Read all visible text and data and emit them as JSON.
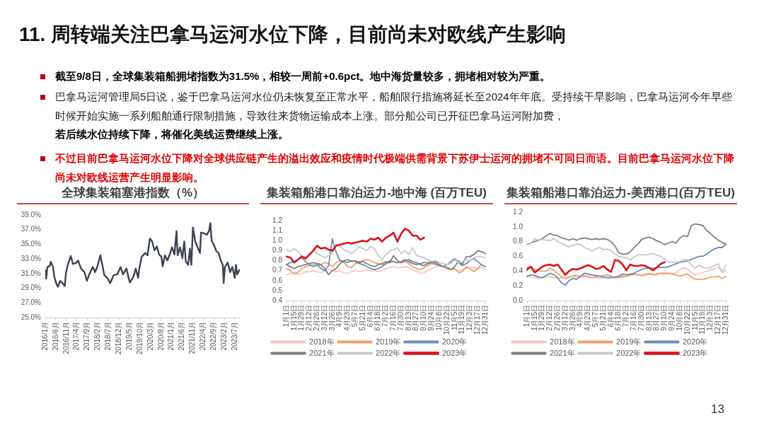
{
  "chart_data": [
    {
      "type": "other",
      "title": "11. 周转端关注巴拿马运河水位下降，目前尚未对欧线产生影响",
      "annotations": [
        "截至9/8日，全球集装箱船拥堵指数为31.5%，相较一周前+0.6pct。地中海货量较多，拥堵相对较为严重。",
        "巴拿马运河管理局5日说，鉴于巴拿马运河水位仍未恢复至正常水平，船舶限行措施将延长至2024年年底。受持续干旱影响，巴拿马运河今年早些时候开始实施一系列船舶通行限制措施，导致往来货物运输成本上涨。部分船公司已开征巴拿马运河附加费，",
        "若后续水位持续下降，将催化美线运费继续上涨。",
        "不过目前巴拿马运河水位下降对全球供应链产生的溢出效应和疫情时代极端供需背景下苏伊士运河的拥堵不可同日而语。目前巴拿马运河水位下降尚未对欧线运营产生明显影响。",
        "13"
      ]
    },
    {
      "type": "line",
      "title": "全球集装箱塞港指数（%）",
      "color": "#3d4450",
      "marker": "none",
      "grid": false,
      "legend": false,
      "x": [
        "2016-01-01",
        "2016-01-14",
        "2016-02-01",
        "2016-03-04",
        "2016-03-20",
        "2016-04-23",
        "2016-05-10",
        "2016-06-06",
        "2016-07-01",
        "2016-08-03",
        "2016-09-06",
        "2016-10-09",
        "2016-10-26",
        "2016-11-22",
        "2017-01-02",
        "2017-02-05",
        "2017-03-25",
        "2017-04-18",
        "2017-06-01",
        "2017-07-21",
        "2017-08-25",
        "2017-09-28",
        "2017-11-18",
        "2017-12-21",
        "2018-01-24",
        "2018-03-07",
        "2018-04-10",
        "2018-05-03",
        "2018-06-23",
        "2018-07-27",
        "2018-09-16",
        "2018-11-06",
        "2018-12-25",
        "2019-01-28",
        "2019-03-19",
        "2019-04-22",
        "2019-05-09",
        "2019-06-28",
        "2019-08-01",
        "2019-09-04",
        "2019-09-21",
        "2019-10-24",
        "2019-12-15",
        "2020-01-18",
        "2020-02-21",
        "2020-03-24",
        "2020-04-27",
        "2020-06-01",
        "2020-07-03",
        "2020-08-06",
        "2020-08-23",
        "2020-09-26",
        "2020-10-30",
        "2020-12-03",
        "2021-01-06",
        "2021-02-09",
        "2021-03-12",
        "2021-03-28",
        "2021-05-02",
        "2021-06-04",
        "2021-07-01",
        "2021-07-25",
        "2021-08-28",
        "2021-09-21",
        "2021-10-12",
        "2021-11-04",
        "2021-12-07",
        "2022-01-10",
        "2022-02-14",
        "2022-03-01",
        "2022-04-10",
        "2022-05-24",
        "2022-06-27",
        "2022-07-13",
        "2022-08-01",
        "2022-09-03",
        "2022-10-07",
        "2022-11-09",
        "2022-12-12",
        "2023-01-09",
        "2023-01-22",
        "2023-02-09",
        "2023-03-22",
        "2023-04-25",
        "2023-05-28",
        "2023-07-01",
        "2023-07-18",
        "2023-08-05",
        "2023-09-08"
      ],
      "values": [
        31.5,
        30.3,
        31.9,
        32.0,
        32.6,
        31.9,
        30.6,
        29.7,
        29.2,
        30.0,
        29.7,
        29.3,
        31.1,
        32.2,
        33.4,
        32.3,
        32.5,
        32.8,
        31.7,
        31.2,
        30.0,
        30.9,
        31.9,
        31.2,
        32.0,
        33.5,
        31.9,
        30.8,
        30.3,
        29.7,
        30.8,
        30.9,
        31.9,
        30.9,
        31.7,
        30.3,
        29.8,
        30.6,
        31.7,
        30.4,
        31.7,
        33.3,
        33.8,
        33.5,
        35.8,
        35.4,
        34.2,
        34.7,
        33.6,
        33.3,
        32.0,
        33.5,
        32.8,
        33.6,
        34.6,
        33.6,
        36.8,
        33.5,
        34.6,
        33.1,
        35.4,
        32.6,
        32.2,
        34.4,
        32.2,
        37.3,
        35.4,
        34.6,
        33.8,
        36.6,
        36.5,
        36.3,
        36.9,
        37.9,
        35.5,
        34.9,
        34.1,
        33.8,
        32.8,
        32.2,
        29.7,
        31.9,
        32.5,
        31.2,
        31.9,
        30.4,
        32.2,
        30.9,
        31.5
      ],
      "xlim": [
        "2016-01-01",
        "2023-09-15"
      ],
      "xticks": [
        {
          "value": "2016-01",
          "label": "2016/1月"
        },
        {
          "value": "2016-06",
          "label": "2016/6月"
        },
        {
          "value": "2016-11",
          "label": "2016/11月"
        },
        {
          "value": "2017-04",
          "label": "2017/4月"
        },
        {
          "value": "2017-09",
          "label": "2017/9月"
        },
        {
          "value": "2018-02",
          "label": "2018/2月"
        },
        {
          "value": "2018-07",
          "label": "2018/7月"
        },
        {
          "value": "2018-12",
          "label": "2018/12月"
        },
        {
          "value": "2019-05",
          "label": "2019/5月"
        },
        {
          "value": "2019-10",
          "label": "2019/10月"
        },
        {
          "value": "2020-03",
          "label": "2020/3月"
        },
        {
          "value": "2020-08",
          "label": "2020/8月"
        },
        {
          "value": "2021-01",
          "label": "2021/1月"
        },
        {
          "value": "2021-06",
          "label": "2021/6月"
        },
        {
          "value": "2021-11",
          "label": "2021/11月"
        },
        {
          "value": "2022-04",
          "label": "2022/4月"
        },
        {
          "value": "2022-09",
          "label": "2022/9月"
        },
        {
          "value": "2023-02",
          "label": "2023/2月"
        },
        {
          "value": "2023-07",
          "label": "2023/7月"
        }
      ],
      "ylim": [
        25,
        39
      ],
      "yticks": [
        {
          "value": 25,
          "label": "25.0%"
        },
        {
          "value": 27,
          "label": "27.0%"
        },
        {
          "value": 29,
          "label": "29.0%"
        },
        {
          "value": 31,
          "label": "31.0%"
        },
        {
          "value": 33,
          "label": "33.0%"
        },
        {
          "value": 35,
          "label": "35.0%"
        },
        {
          "value": 37,
          "label": "37.0%"
        },
        {
          "value": 39,
          "label": "39.0%"
        }
      ]
    },
    {
      "type": "line",
      "title": "集装箱船港口靠泊运力-地中海 (百万TEU)",
      "marker": "none",
      "grid": false,
      "legend": "bottom",
      "categories": [
        "1月1日",
        null,
        "1月15日",
        null,
        "1月29日",
        null,
        "2月12日",
        null,
        "2月26日",
        null,
        "3月12日",
        null,
        "3月26日",
        null,
        "4月9日",
        null,
        "4月23日",
        null,
        "5月7日",
        null,
        "5月21日",
        null,
        "6月4日",
        null,
        "6月18日",
        null,
        "7月2日",
        null,
        "7月16日",
        null,
        "7月30日",
        null,
        "8月13日",
        null,
        "8月27日",
        null,
        "9月10日",
        null,
        "9月24日",
        null,
        "10月8日",
        null,
        "10月22日",
        null,
        "11月5日",
        null,
        "11月19日",
        null,
        "12月3日",
        null,
        "12月17日",
        null,
        "12月31日"
      ],
      "ylim": [
        0.4,
        1.2
      ],
      "yticks": [
        0.4,
        0.5,
        0.6,
        0.7,
        0.8,
        0.9,
        {
          "value": 1,
          "label": "1.0"
        },
        1.1,
        1.2
      ],
      "series": [
        {
          "name": "2018年",
          "color": "#f5c6c6",
          "values": [
            0.66,
            0.67,
            0.68,
            0.66,
            0.67,
            0.69,
            0.69,
            0.7,
            0.69,
            0.68,
            0.7,
            0.71,
            0.7,
            0.69,
            0.7,
            0.68,
            0.67,
            0.69,
            0.7,
            0.69,
            0.7,
            0.71,
            0.7,
            0.7,
            0.69,
            0.7,
            0.72,
            0.73,
            0.74,
            0.73,
            0.73,
            0.74,
            0.73,
            0.71,
            0.69,
            0.67,
            0.68,
            0.7,
            0.72,
            0.74,
            0.75,
            0.74,
            0.73,
            0.72,
            0.71,
            0.7,
            0.71,
            0.72,
            0.73,
            0.73,
            0.72,
            0.73,
            0.72
          ]
        },
        {
          "name": "2019年",
          "color": "#f2a06c",
          "values": [
            0.72,
            0.7,
            0.67,
            0.68,
            0.72,
            0.74,
            0.75,
            0.76,
            0.75,
            0.76,
            0.78,
            0.77,
            0.74,
            0.78,
            0.8,
            0.78,
            0.74,
            0.73,
            0.77,
            0.79,
            0.8,
            0.81,
            0.8,
            0.78,
            0.77,
            0.76,
            0.77,
            0.78,
            0.79,
            0.78,
            0.78,
            0.79,
            0.77,
            0.74,
            0.72,
            0.71,
            0.73,
            0.75,
            0.77,
            0.76,
            0.75,
            0.74,
            0.72,
            0.71,
            0.72,
            0.68,
            0.69,
            0.74,
            0.72,
            0.69,
            0.72,
            0.76,
            0.74
          ]
        },
        {
          "name": "2020年",
          "color": "#6b8db3",
          "values": [
            0.76,
            0.78,
            0.79,
            0.81,
            0.83,
            0.79,
            0.76,
            0.74,
            0.76,
            0.72,
            0.7,
            0.75,
            1.02,
            0.88,
            0.8,
            0.79,
            0.78,
            0.8,
            0.79,
            0.77,
            0.76,
            0.74,
            0.72,
            0.71,
            0.72,
            0.74,
            0.77,
            0.8,
            0.79,
            0.78,
            0.79,
            0.81,
            0.79,
            0.77,
            0.76,
            0.77,
            0.78,
            0.78,
            0.79,
            0.77,
            0.75,
            0.74,
            0.76,
            0.79,
            0.82,
            0.78,
            0.75,
            0.77,
            0.8,
            0.82,
            0.79,
            0.76,
            0.74
          ]
        },
        {
          "name": "2021年",
          "color": "#808080",
          "values": [
            0.76,
            0.74,
            0.72,
            0.74,
            0.75,
            0.76,
            0.77,
            0.78,
            0.77,
            0.76,
            0.72,
            0.66,
            0.7,
            0.72,
            0.77,
            0.8,
            0.81,
            0.79,
            0.8,
            0.78,
            0.79,
            0.77,
            0.75,
            0.74,
            0.76,
            0.77,
            0.79,
            0.78,
            0.85,
            0.8,
            0.78,
            0.8,
            0.81,
            0.79,
            0.78,
            0.76,
            0.75,
            0.77,
            0.78,
            0.79,
            0.76,
            0.74,
            0.73,
            0.71,
            0.74,
            0.8,
            0.76,
            0.84,
            0.84,
            0.86,
            0.9,
            0.89,
            0.87
          ]
        },
        {
          "name": "2022年",
          "color": "#c8c8c8",
          "values": [
            0.91,
            0.89,
            0.92,
            0.89,
            0.85,
            0.84,
            0.86,
            0.9,
            0.87,
            0.85,
            0.83,
            0.85,
            0.87,
            0.96,
            0.94,
            0.91,
            0.89,
            0.87,
            0.9,
            0.94,
            0.92,
            0.9,
            0.94,
            0.92,
            0.85,
            0.81,
            0.86,
            0.9,
            0.91,
            0.93,
            0.87,
            0.9,
            0.86,
            0.93,
            0.85,
            0.84,
            0.83,
            0.81,
            0.79,
            0.8,
            0.78,
            0.77,
            0.76,
            0.77,
            0.81,
            0.78,
            0.79,
            0.81,
            0.8,
            0.83,
            0.84,
            0.84,
            0.83
          ]
        },
        {
          "name": "2023年",
          "color": "#d7141c",
          "values": [
            0.84,
            0.83,
            0.78,
            0.81,
            0.84,
            0.82,
            0.86,
            0.9,
            0.95,
            0.92,
            0.93,
            0.91,
            0.9,
            0.95,
            0.96,
            0.97,
            0.98,
            0.97,
            0.98,
            0.99,
            1.0,
            0.99,
            1.02,
            1.01,
            1.03,
            0.99,
            1.03,
            1.05,
            1.08,
            0.99,
            1.07,
            1.12,
            1.1,
            1.05,
            1.05,
            1.01,
            1.03,
            null,
            null,
            null,
            null,
            null,
            null,
            null,
            null,
            null,
            null,
            null,
            null,
            null,
            null,
            null,
            null
          ]
        }
      ]
    },
    {
      "type": "line",
      "title": "集装箱船港口靠泊运力-美西港口(百万TEU)",
      "marker": "none",
      "grid": false,
      "legend": "bottom",
      "categories": [
        "1月1日",
        null,
        "1月15日",
        null,
        "1月29日",
        null,
        "2月12日",
        null,
        "2月26日",
        null,
        "3月12日",
        null,
        "3月26日",
        null,
        "4月9日",
        null,
        "4月23日",
        null,
        "5月7日",
        null,
        "5月21日",
        null,
        "6月4日",
        null,
        "6月18日",
        null,
        "7月2日",
        null,
        "7月16日",
        null,
        "7月30日",
        null,
        "8月13日",
        null,
        "8月27日",
        null,
        "9月10日",
        null,
        "9月24日",
        null,
        "10月8日",
        null,
        "10月22日",
        null,
        "11月5日",
        null,
        "11月19日",
        null,
        "12月3日",
        null,
        "12月17日",
        null,
        "12月31日"
      ],
      "ylim": [
        0,
        1.2
      ],
      "yticks": [
        {
          "value": 0,
          "label": "0.0"
        },
        0.2,
        0.4,
        0.6,
        0.8,
        {
          "value": 1,
          "label": "1.0"
        },
        1.2
      ],
      "series": [
        {
          "name": "2018年",
          "color": "#f5c6c6",
          "values": [
            0.32,
            0.33,
            0.31,
            0.3,
            0.31,
            0.32,
            0.33,
            0.31,
            0.3,
            0.31,
            0.3,
            0.32,
            0.33,
            0.32,
            0.31,
            0.32,
            0.33,
            0.32,
            0.31,
            0.3,
            0.31,
            0.32,
            0.31,
            0.32,
            0.33,
            0.34,
            0.33,
            0.34,
            0.35,
            0.36,
            0.35,
            0.36,
            0.37,
            0.36,
            0.35,
            0.37,
            0.38,
            0.37,
            0.36,
            0.38,
            0.42,
            0.45,
            0.43,
            0.38,
            0.35,
            0.36,
            0.38,
            0.4,
            0.42,
            0.43,
            0.45,
            0.4,
            0.48
          ]
        },
        {
          "name": "2019年",
          "color": "#f2a06c",
          "values": [
            0.45,
            0.46,
            0.42,
            0.41,
            0.4,
            0.4,
            0.44,
            0.41,
            0.37,
            0.32,
            0.3,
            0.31,
            0.34,
            0.34,
            0.33,
            0.34,
            0.32,
            0.31,
            0.32,
            0.33,
            0.34,
            0.35,
            0.33,
            0.31,
            0.31,
            0.32,
            0.33,
            0.35,
            0.36,
            0.35,
            0.34,
            0.35,
            0.36,
            0.35,
            0.36,
            0.37,
            0.36,
            0.37,
            0.36,
            0.35,
            0.33,
            0.35,
            0.36,
            0.32,
            0.29,
            0.29,
            0.29,
            0.3,
            0.32,
            0.32,
            0.33,
            0.3,
            0.33
          ]
        },
        {
          "name": "2020年",
          "color": "#6b8db3",
          "values": [
            0.33,
            0.35,
            0.34,
            0.32,
            0.31,
            0.34,
            0.37,
            0.35,
            0.31,
            0.24,
            0.21,
            0.27,
            0.3,
            0.29,
            0.33,
            0.37,
            0.36,
            0.35,
            0.34,
            0.33,
            0.32,
            0.31,
            0.31,
            0.32,
            0.33,
            0.36,
            0.35,
            0.36,
            0.37,
            0.4,
            0.42,
            0.44,
            0.44,
            0.44,
            0.45,
            0.45,
            0.45,
            0.46,
            0.48,
            0.5,
            0.52,
            0.53,
            0.54,
            0.56,
            0.58,
            0.6,
            0.6,
            0.63,
            0.67,
            0.7,
            0.72,
            0.72,
            0.76
          ]
        },
        {
          "name": "2021年",
          "color": "#808080",
          "values": [
            0.76,
            0.78,
            0.8,
            0.82,
            0.84,
            0.88,
            0.91,
            0.89,
            0.88,
            0.85,
            0.84,
            0.82,
            0.84,
            0.82,
            0.84,
            0.85,
            0.84,
            0.83,
            0.84,
            0.83,
            0.84,
            0.83,
            0.8,
            0.74,
            0.65,
            0.63,
            0.63,
            0.66,
            0.72,
            0.77,
            0.83,
            0.85,
            0.86,
            0.84,
            0.81,
            0.79,
            0.76,
            0.78,
            0.8,
            0.78,
            0.85,
            0.88,
            0.87,
            1.02,
            1.04,
            1.03,
            1.02,
            0.95,
            0.91,
            0.86,
            0.82,
            0.79,
            0.77
          ]
        },
        {
          "name": "2022年",
          "color": "#c8c8c8",
          "values": [
            0.76,
            0.77,
            0.84,
            0.82,
            0.83,
            0.82,
            0.81,
            0.84,
            0.8,
            0.78,
            0.75,
            0.73,
            0.75,
            0.77,
            0.76,
            0.72,
            0.7,
            0.67,
            0.7,
            0.72,
            0.69,
            0.7,
            0.68,
            0.63,
            0.6,
            0.59,
            0.58,
            0.55,
            0.59,
            0.62,
            0.62,
            0.62,
            0.63,
            0.64,
            0.62,
            0.6,
            0.56,
            0.53,
            0.52,
            0.52,
            0.53,
            0.56,
            0.55,
            0.48,
            0.44,
            0.48,
            0.45,
            0.44,
            0.45,
            0.47,
            0.5,
            0.38,
            0.41
          ]
        },
        {
          "name": "2023年",
          "color": "#d7141c",
          "values": [
            0.42,
            0.46,
            0.38,
            0.42,
            0.46,
            0.48,
            0.49,
            0.47,
            0.49,
            0.42,
            0.35,
            0.4,
            0.43,
            0.42,
            0.44,
            0.46,
            0.48,
            0.46,
            0.43,
            0.44,
            0.47,
            0.42,
            0.39,
            0.55,
            0.54,
            0.49,
            0.41,
            0.49,
            0.47,
            0.47,
            0.48,
            0.47,
            0.44,
            0.41,
            0.45,
            0.5,
            0.52,
            null,
            null,
            null,
            null,
            null,
            null,
            null,
            null,
            null,
            null,
            null,
            null,
            null,
            null,
            null,
            null
          ]
        }
      ]
    }
  ]
}
